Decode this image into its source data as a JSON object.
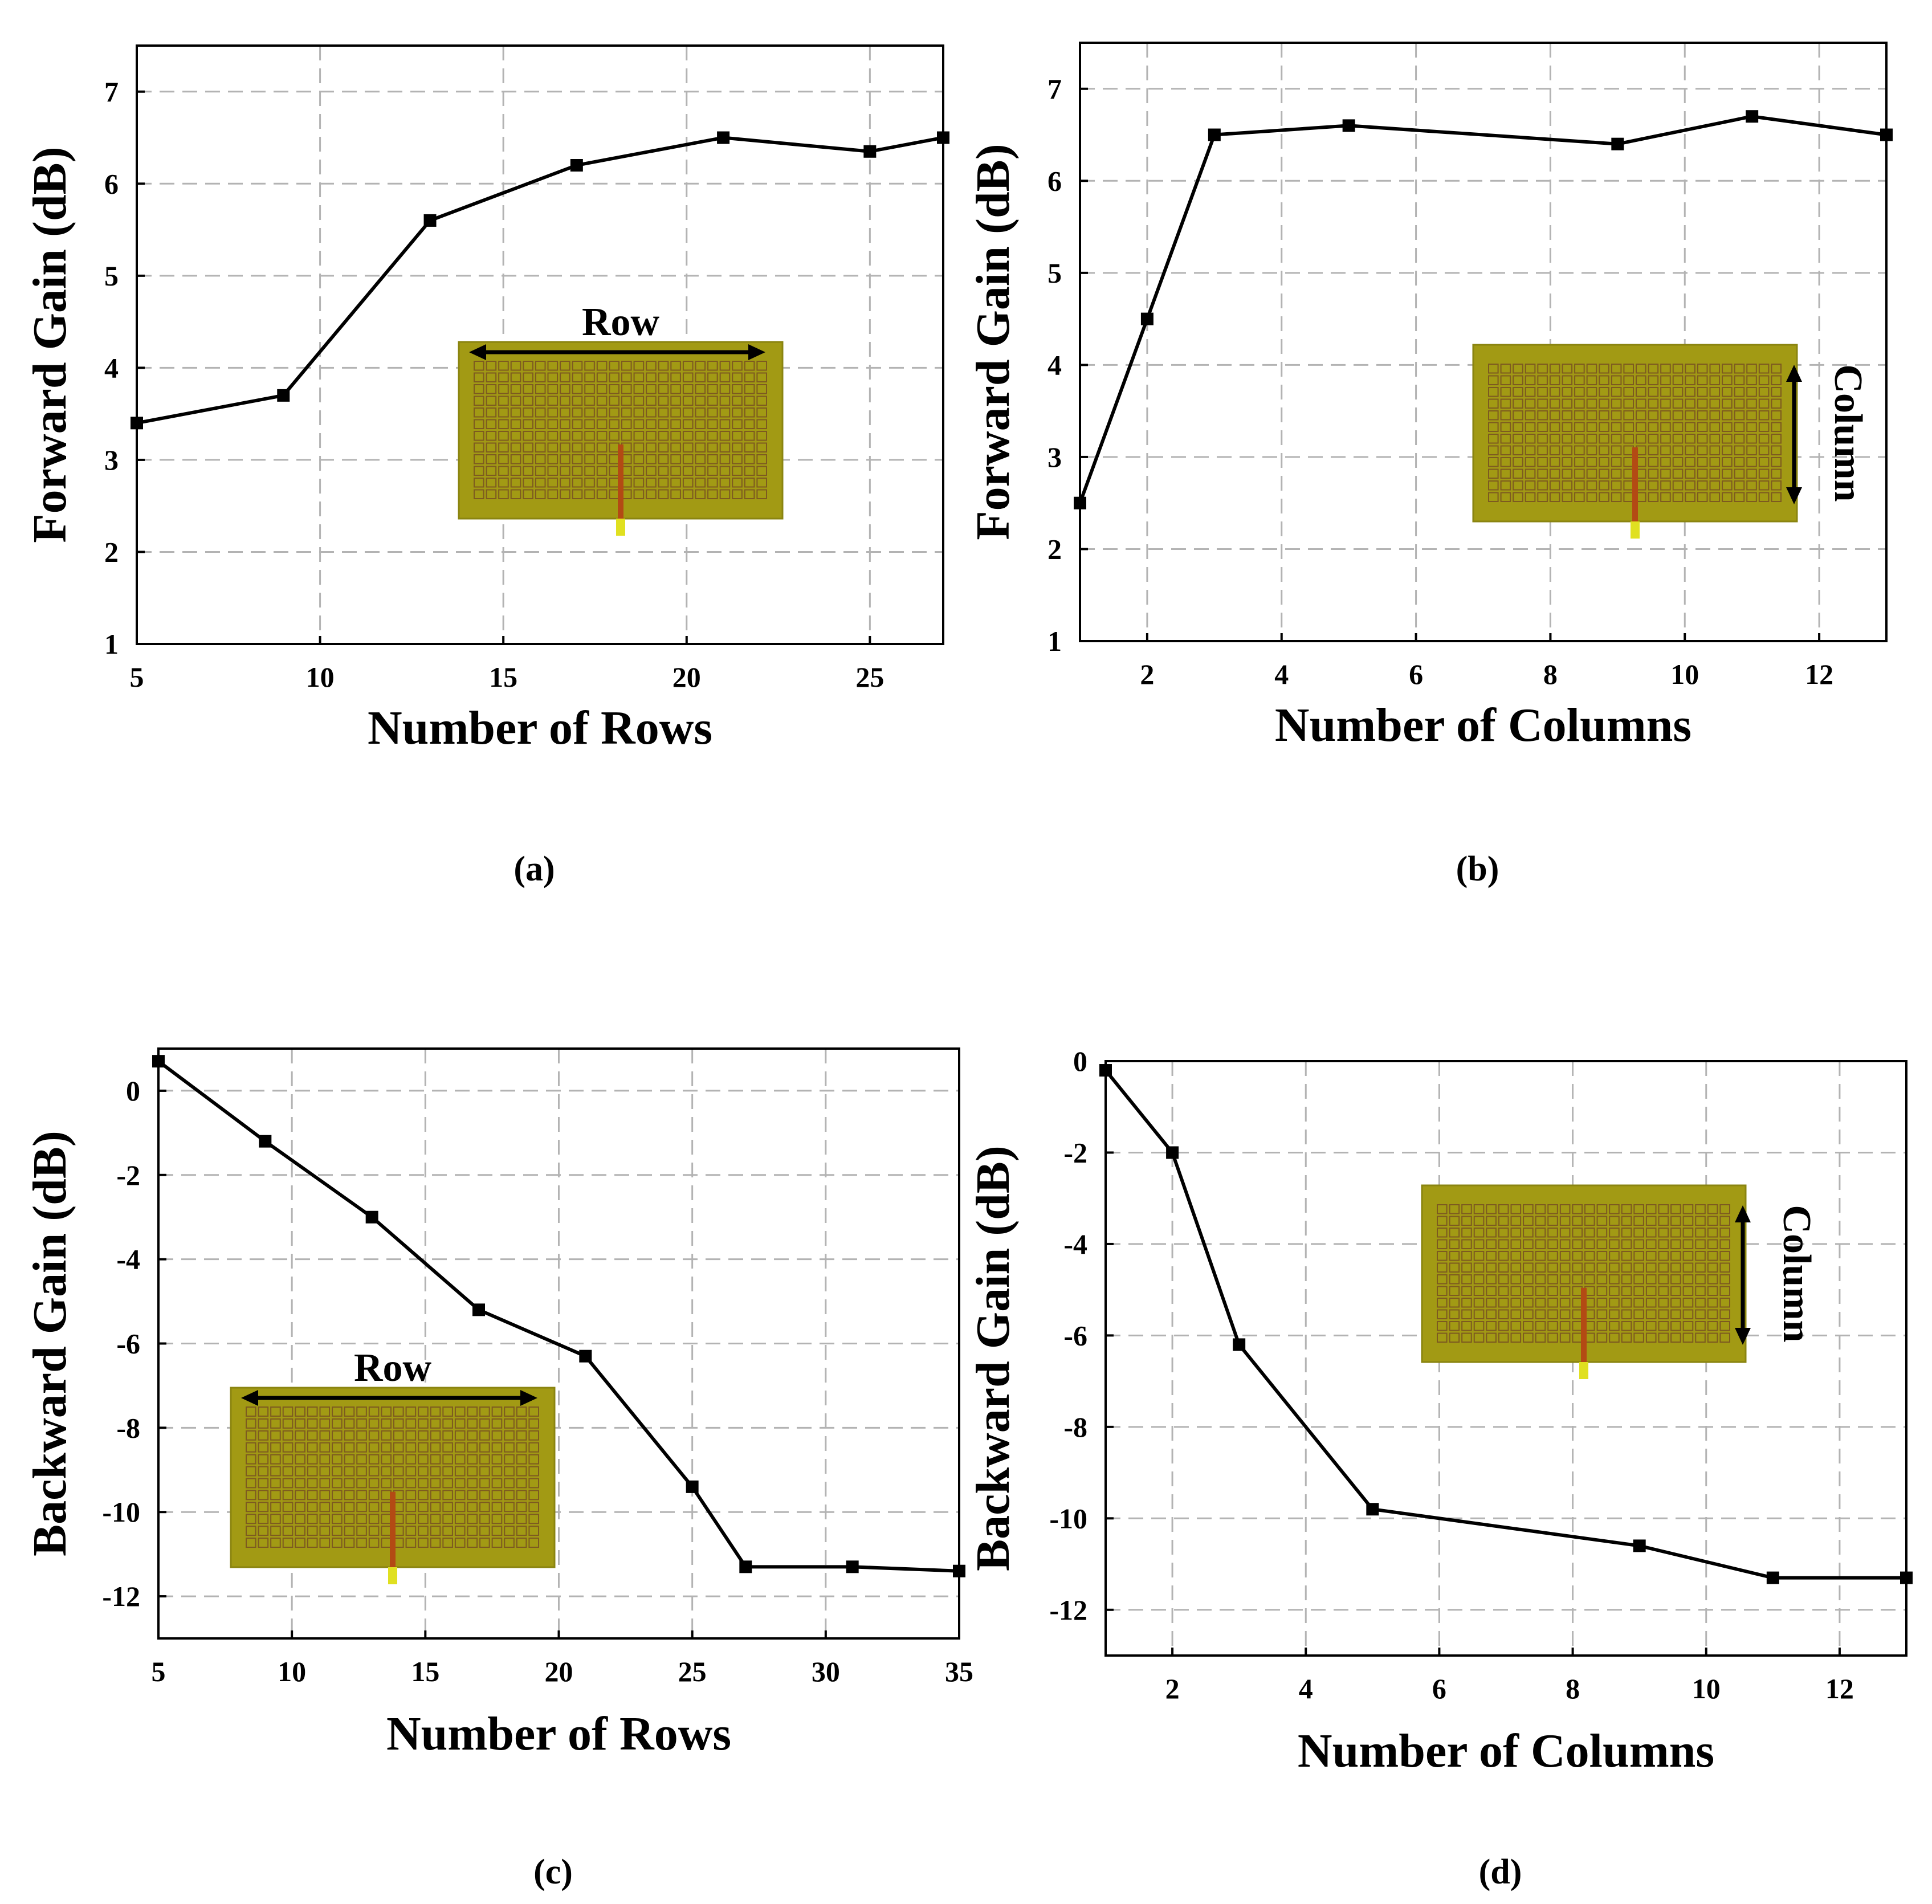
{
  "figure": {
    "charts": [
      "a",
      "b",
      "c",
      "d"
    ]
  },
  "chart_data": [
    {
      "id": "a",
      "type": "line",
      "caption": "(a)",
      "xlabel": "Number of Rows",
      "ylabel": "Forward Gain (dB)",
      "xlim": [
        5,
        27
      ],
      "ylim": [
        1,
        7.5
      ],
      "xticks": [
        5,
        10,
        15,
        20,
        25
      ],
      "yticks": [
        1,
        2,
        3,
        4,
        5,
        6,
        7
      ],
      "x": [
        5,
        9,
        13,
        17,
        21,
        25,
        27
      ],
      "y": [
        3.4,
        3.7,
        5.6,
        6.2,
        6.5,
        6.35,
        6.5
      ],
      "inset_label": "Row",
      "inset_orientation": "row"
    },
    {
      "id": "b",
      "type": "line",
      "caption": "(b)",
      "xlabel": "Number of Columns",
      "ylabel": "Forward Gain (dB)",
      "xlim": [
        1,
        13
      ],
      "ylim": [
        1,
        7.5
      ],
      "xticks": [
        2,
        4,
        6,
        8,
        10,
        12
      ],
      "yticks": [
        1,
        2,
        3,
        4,
        5,
        6,
        7
      ],
      "x": [
        1,
        2,
        3,
        5,
        9,
        11,
        13
      ],
      "y": [
        2.5,
        4.5,
        6.5,
        6.6,
        6.4,
        6.7,
        6.5
      ],
      "inset_label": "Column",
      "inset_orientation": "column"
    },
    {
      "id": "c",
      "type": "line",
      "caption": "(c)",
      "xlabel": "Number of Rows",
      "ylabel": "Backward Gain (dB)",
      "xlim": [
        5,
        35
      ],
      "ylim": [
        -13,
        1
      ],
      "xticks": [
        5,
        10,
        15,
        20,
        25,
        30,
        35
      ],
      "yticks": [
        0,
        -2,
        -4,
        -6,
        -8,
        -10,
        -12
      ],
      "x": [
        5,
        9,
        13,
        17,
        21,
        25,
        27,
        31,
        35
      ],
      "y": [
        0.7,
        -1.2,
        -3.0,
        -5.2,
        -6.3,
        -9.4,
        -11.3,
        -11.3,
        -11.4
      ],
      "inset_label": "Row",
      "inset_orientation": "row"
    },
    {
      "id": "d",
      "type": "line",
      "caption": "(d)",
      "xlabel": "Number of Columns",
      "ylabel": "Backward Gain (dB)",
      "xlim": [
        1,
        13
      ],
      "ylim": [
        -13,
        0
      ],
      "xticks": [
        2,
        4,
        6,
        8,
        10,
        12
      ],
      "yticks": [
        0,
        -2,
        -4,
        -6,
        -8,
        -10,
        -12
      ],
      "x": [
        1,
        2,
        3,
        5,
        9,
        11,
        13
      ],
      "y": [
        -0.2,
        -2.0,
        -6.2,
        -9.8,
        -10.6,
        -11.3,
        -11.3
      ],
      "inset_label": "Column",
      "inset_orientation": "column"
    }
  ]
}
